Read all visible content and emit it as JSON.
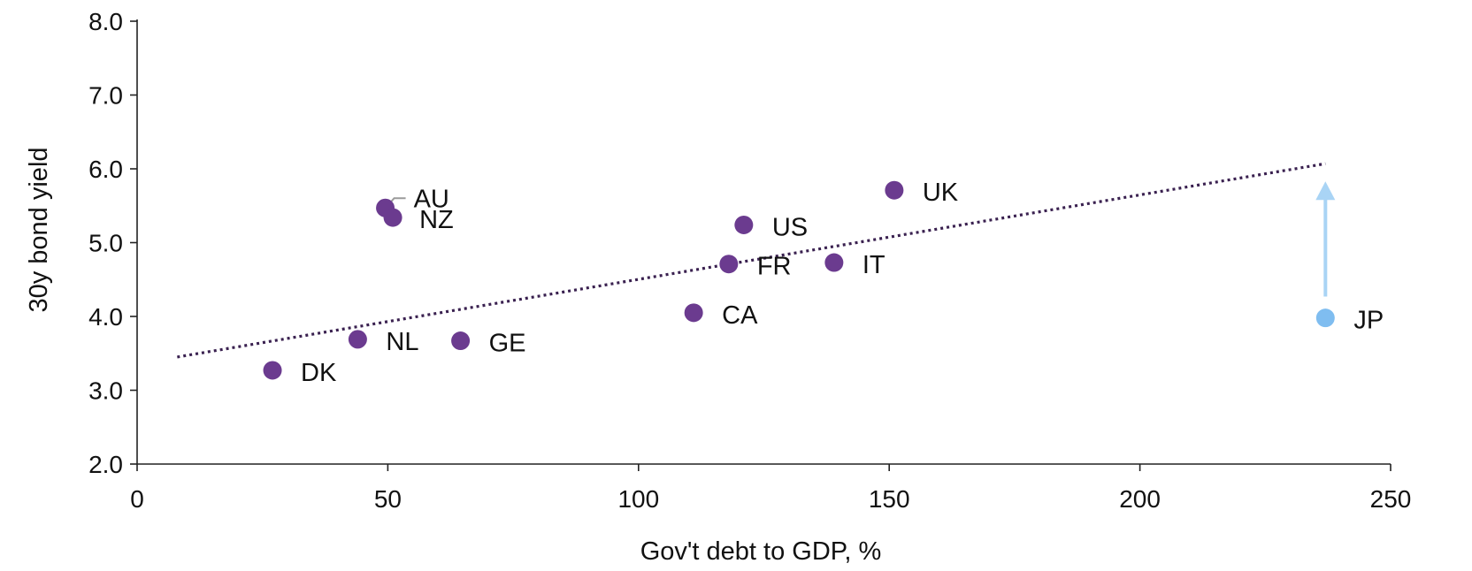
{
  "chart_data": {
    "type": "scatter",
    "title": "",
    "xlabel": "Gov't debt to GDP, %",
    "ylabel": "30y bond yield",
    "xlim": [
      0,
      250
    ],
    "ylim": [
      2.0,
      8.0
    ],
    "x_ticks": [
      "0",
      "50",
      "100",
      "150",
      "200",
      "250"
    ],
    "y_ticks": [
      "2.0",
      "3.0",
      "4.0",
      "5.0",
      "6.0",
      "7.0",
      "8.0"
    ],
    "grid": false,
    "points": [
      {
        "label": "DK",
        "x": 27,
        "y": 3.27,
        "color": "#6b3b8f"
      },
      {
        "label": "NL",
        "x": 44,
        "y": 3.69,
        "color": "#6b3b8f"
      },
      {
        "label": "GE",
        "x": 64.5,
        "y": 3.67,
        "color": "#6b3b8f"
      },
      {
        "label": "AU",
        "x": 49.5,
        "y": 5.47,
        "color": "#6b3b8f"
      },
      {
        "label": "NZ",
        "x": 51,
        "y": 5.34,
        "color": "#6b3b8f"
      },
      {
        "label": "CA",
        "x": 111,
        "y": 4.05,
        "color": "#6b3b8f"
      },
      {
        "label": "FR",
        "x": 118,
        "y": 4.71,
        "color": "#6b3b8f"
      },
      {
        "label": "US",
        "x": 121,
        "y": 5.24,
        "color": "#6b3b8f"
      },
      {
        "label": "IT",
        "x": 139,
        "y": 4.73,
        "color": "#6b3b8f"
      },
      {
        "label": "UK",
        "x": 151,
        "y": 5.71,
        "color": "#6b3b8f"
      },
      {
        "label": "JP",
        "x": 237,
        "y": 3.98,
        "color": "#7fbdf0"
      }
    ],
    "trendline": {
      "x": [
        8,
        237
      ],
      "y": [
        3.45,
        6.07
      ],
      "style": "dotted",
      "color": "#3a2150"
    },
    "arrow": {
      "x": 237,
      "y_from": 4.27,
      "y_to": 5.83,
      "color": "#a9d4f5"
    }
  }
}
